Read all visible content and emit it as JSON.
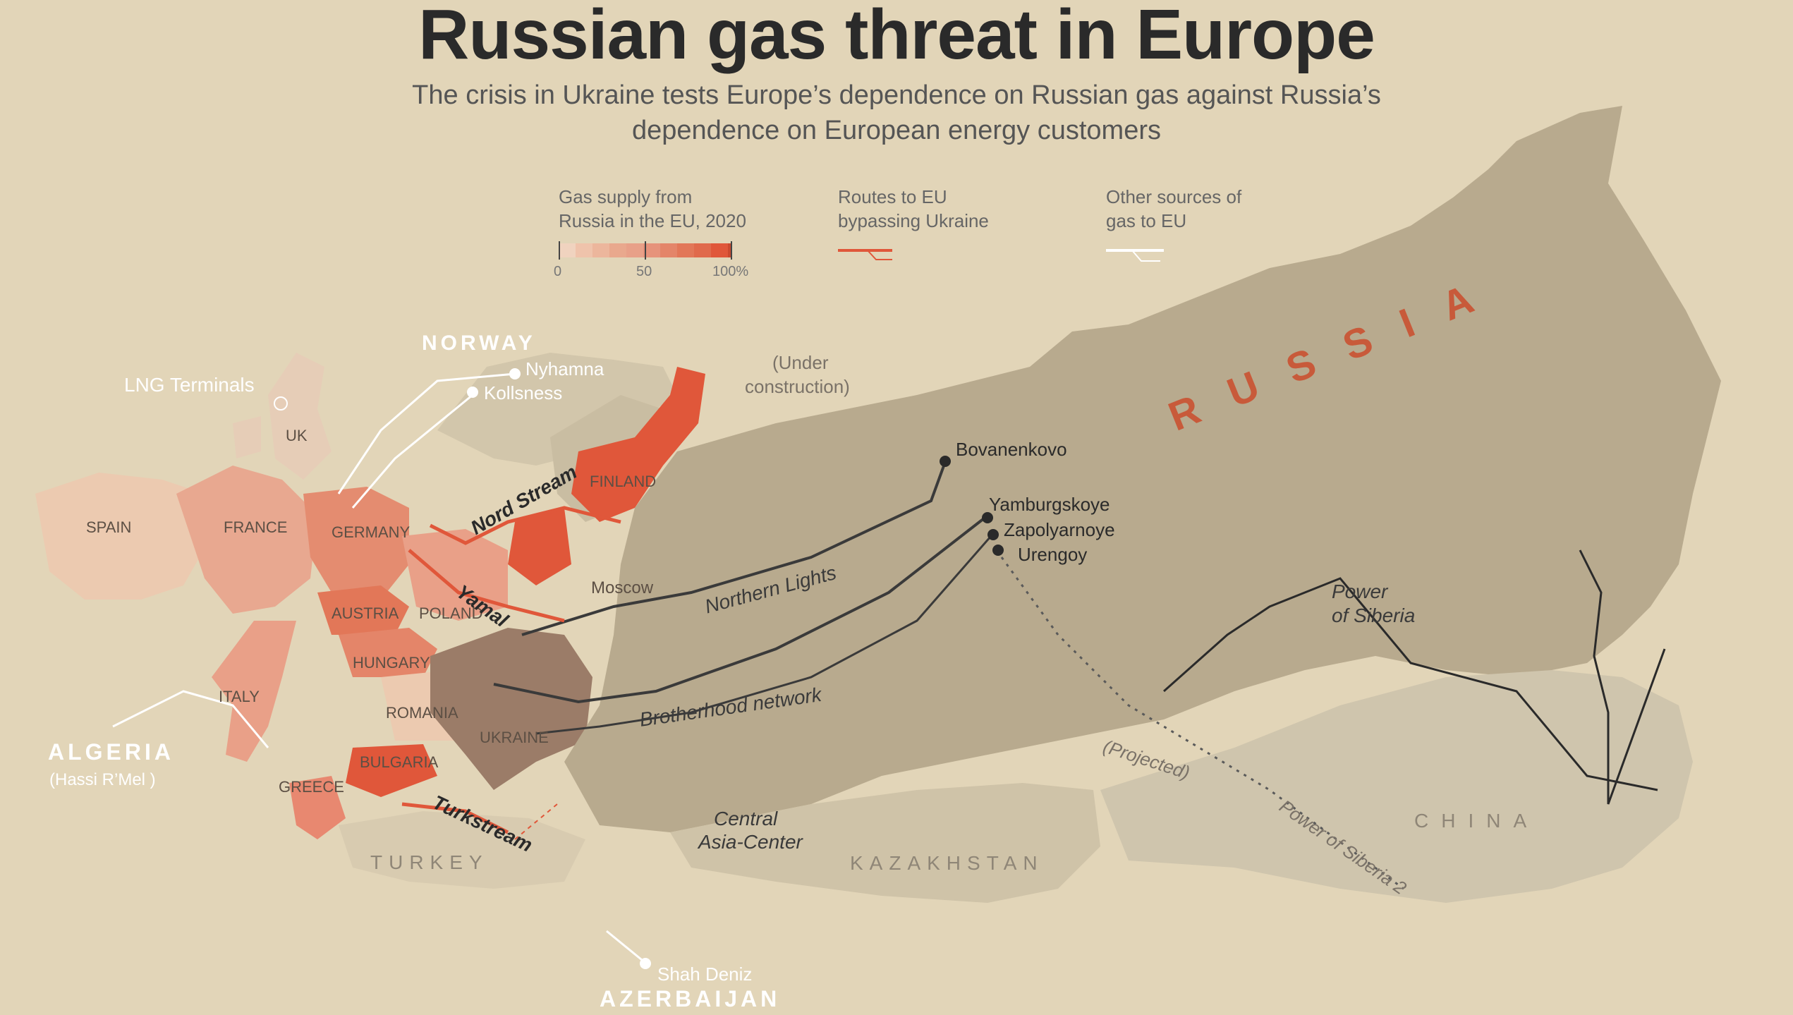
{
  "header": {
    "title": "Russian gas threat in Europe",
    "subtitle_line1": "The crisis in Ukraine tests Europe’s dependence on Russian gas against Russia’s",
    "subtitle_line2": "dependence on European energy customers"
  },
  "legend": {
    "supply": {
      "line1": "Gas supply from",
      "line2": "Russia in the EU, 2020",
      "tick_0": "0",
      "tick_50": "50",
      "tick_100": "100%"
    },
    "routes": {
      "line1": "Routes to EU",
      "line2": "bypassing Ukraine"
    },
    "other": {
      "line1": "Other sources of",
      "line2": "gas to EU"
    }
  },
  "countries": {
    "spain": "SPAIN",
    "france": "FRANCE",
    "uk": "UK",
    "germany": "GERMANY",
    "austria": "AUSTRIA",
    "poland": "POLAND",
    "hungary": "HUNGARY",
    "italy": "ITALY",
    "romania": "ROMANIA",
    "bulgaria": "BULGARIA",
    "greece": "GREECE",
    "ukraine": "UKRAINE",
    "finland": "FINLAND",
    "turkey": "TURKEY",
    "kazakhstan": "KAZAKHSTAN",
    "china": "CHINA",
    "russia": "RUSSIA"
  },
  "regions": {
    "norway": "NORWAY",
    "algeria": "ALGERIA",
    "algeria_sub": "(Hassi R’Mel )",
    "azerbaijan": "AZERBAIJAN",
    "lng_terminals": "LNG Terminals"
  },
  "cities": {
    "nyhamna": "Nyhamna",
    "kollsness": "Kollsness",
    "moscow": "Moscow",
    "bovanenkovo": "Bovanenkovo",
    "yamburgskoye": "Yamburgskoye",
    "zapolyarnoye": "Zapolyarnoye",
    "urengoy": "Urengoy",
    "shah_deniz": "Shah Deniz"
  },
  "routes": {
    "nord_stream": "Nord Stream",
    "yamal": "Yamal",
    "turkstream": "Turkstream",
    "northern_lights": "Northern Lights",
    "brotherhood": "Brotherhood network",
    "central_asia_line1": "Central",
    "central_asia_line2": "Asia-Center",
    "power_siberia_line1": "Power",
    "power_siberia_line2": "of Siberia",
    "power_siberia_2": "Power of Siberia 2",
    "projected": "(Projected)",
    "under_construction_line1": "(Under",
    "under_construction_line2": "construction)"
  },
  "colors": {
    "background": "#e2d5b8",
    "russia_land": "#b8aa8e",
    "high_supply": "#e0573a",
    "mid_supply": "#e9937a",
    "low_supply": "#efc3ab",
    "ukraine": "#9b7c68",
    "route_red": "#e0573a",
    "pipeline": "#3a3a3a"
  },
  "supply_share_percent": {
    "spain": 10,
    "france": 20,
    "germany": 55,
    "austria": 65,
    "poland": 45,
    "hungary": 60,
    "italy": 40,
    "romania": 20,
    "bulgaria": 75,
    "greece": 40,
    "finland": 95,
    "uk": 5
  }
}
